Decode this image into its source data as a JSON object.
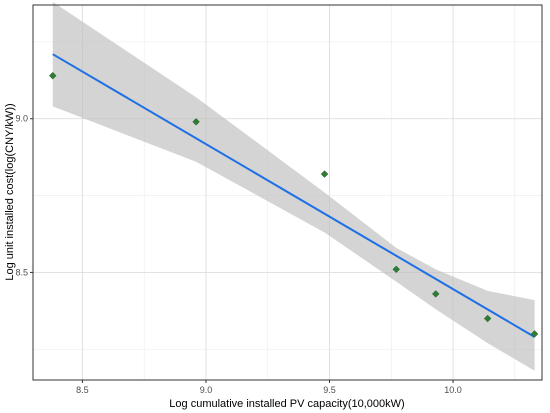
{
  "chart_data": {
    "type": "scatter",
    "title": "",
    "xlabel": "Log cumulative installed PV capacity(10,000kW)",
    "ylabel": "Log unit installed cost(log(CNY/kW))",
    "xlim": [
      8.3,
      10.36
    ],
    "ylim": [
      8.15,
      9.37
    ],
    "x_ticks": [
      8.5,
      9.0,
      9.5,
      10.0
    ],
    "x_tick_labels": [
      "8.5",
      "9.0",
      "9.5",
      "10.0"
    ],
    "y_ticks": [
      8.5,
      9.0
    ],
    "y_tick_labels": [
      "8.5",
      "9.0"
    ],
    "grid": true,
    "legend": "none",
    "points": {
      "x": [
        8.38,
        8.96,
        9.48,
        9.77,
        9.93,
        10.14,
        10.33
      ],
      "y": [
        9.14,
        8.99,
        8.82,
        8.51,
        8.43,
        8.35,
        8.3
      ],
      "color": "#2e7d32"
    },
    "fit_line": {
      "x": [
        8.38,
        10.33
      ],
      "y": [
        9.21,
        8.29
      ],
      "color": "#1f6fe5"
    },
    "confidence_band": {
      "x": [
        8.38,
        8.96,
        9.48,
        9.77,
        9.93,
        10.14,
        10.33
      ],
      "lower": [
        9.04,
        8.86,
        8.63,
        8.47,
        8.38,
        8.27,
        8.18
      ],
      "upper": [
        9.38,
        9.07,
        8.76,
        8.58,
        8.51,
        8.44,
        8.41
      ],
      "color": "#bdbdbd"
    }
  }
}
